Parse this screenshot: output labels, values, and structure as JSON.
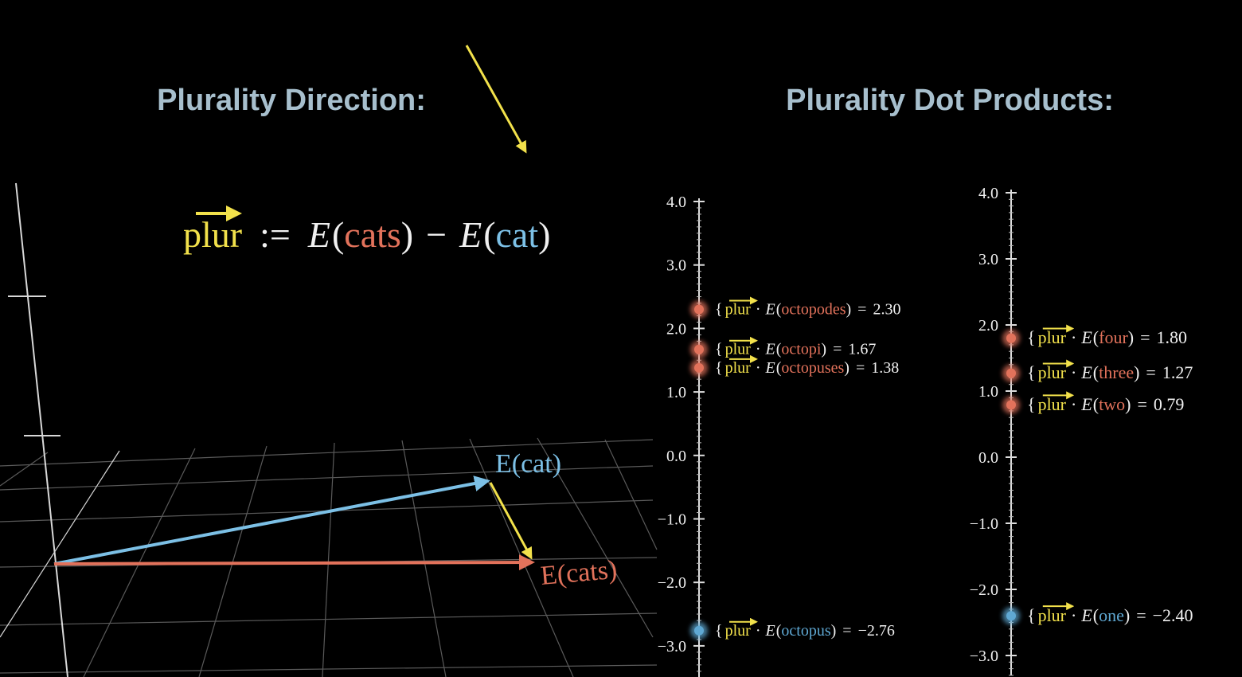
{
  "titles": {
    "left": "Plurality Direction:",
    "right": "Plurality Dot Products:"
  },
  "notation": {
    "plur": "plur",
    "assign": ":=",
    "E": "E",
    "open": "(",
    "close": ")",
    "minus": "−",
    "brace": "{",
    "dot": "·",
    "equals": "="
  },
  "formula": {
    "word_plural": "cats",
    "word_singular": "cat"
  },
  "vectors": {
    "singular": "E(cat)",
    "plural": "E(cats)"
  },
  "chart_data": [
    {
      "type": "numberline",
      "ylim": [
        -3.5,
        4.0
      ],
      "yticks": [
        {
          "value": 4.0,
          "label": "4.0"
        },
        {
          "value": 3.0,
          "label": "3.0"
        },
        {
          "value": 2.0,
          "label": "2.0"
        },
        {
          "value": 1.0,
          "label": "1.0"
        },
        {
          "value": 0.0,
          "label": "0.0"
        },
        {
          "value": -1.0,
          "label": "−1.0"
        },
        {
          "value": -2.0,
          "label": "−2.0"
        },
        {
          "value": -3.0,
          "label": "−3.0"
        }
      ],
      "categories": [
        "octopodes",
        "octopi",
        "octopuses",
        "octopus"
      ],
      "values": [
        2.3,
        1.67,
        1.38,
        -2.76
      ],
      "value_labels": [
        "2.30",
        "1.67",
        "1.38",
        "−2.76"
      ],
      "colors": [
        "#e2725b",
        "#e2725b",
        "#e2725b",
        "#5fa8d3"
      ]
    },
    {
      "type": "numberline",
      "ylim": [
        -3.3,
        4.0
      ],
      "yticks": [
        {
          "value": 4.0,
          "label": "4.0"
        },
        {
          "value": 3.0,
          "label": "3.0"
        },
        {
          "value": 2.0,
          "label": "2.0"
        },
        {
          "value": 1.0,
          "label": "1.0"
        },
        {
          "value": 0.0,
          "label": "0.0"
        },
        {
          "value": -1.0,
          "label": "−1.0"
        },
        {
          "value": -2.0,
          "label": "−2.0"
        },
        {
          "value": -3.0,
          "label": "−3.0"
        }
      ],
      "categories": [
        "four",
        "three",
        "two",
        "one"
      ],
      "values": [
        1.8,
        1.27,
        0.79,
        -2.4
      ],
      "value_labels": [
        "1.80",
        "1.27",
        "0.79",
        "−2.40"
      ],
      "colors": [
        "#e2725b",
        "#e2725b",
        "#e2725b",
        "#5fa8d3"
      ]
    }
  ]
}
